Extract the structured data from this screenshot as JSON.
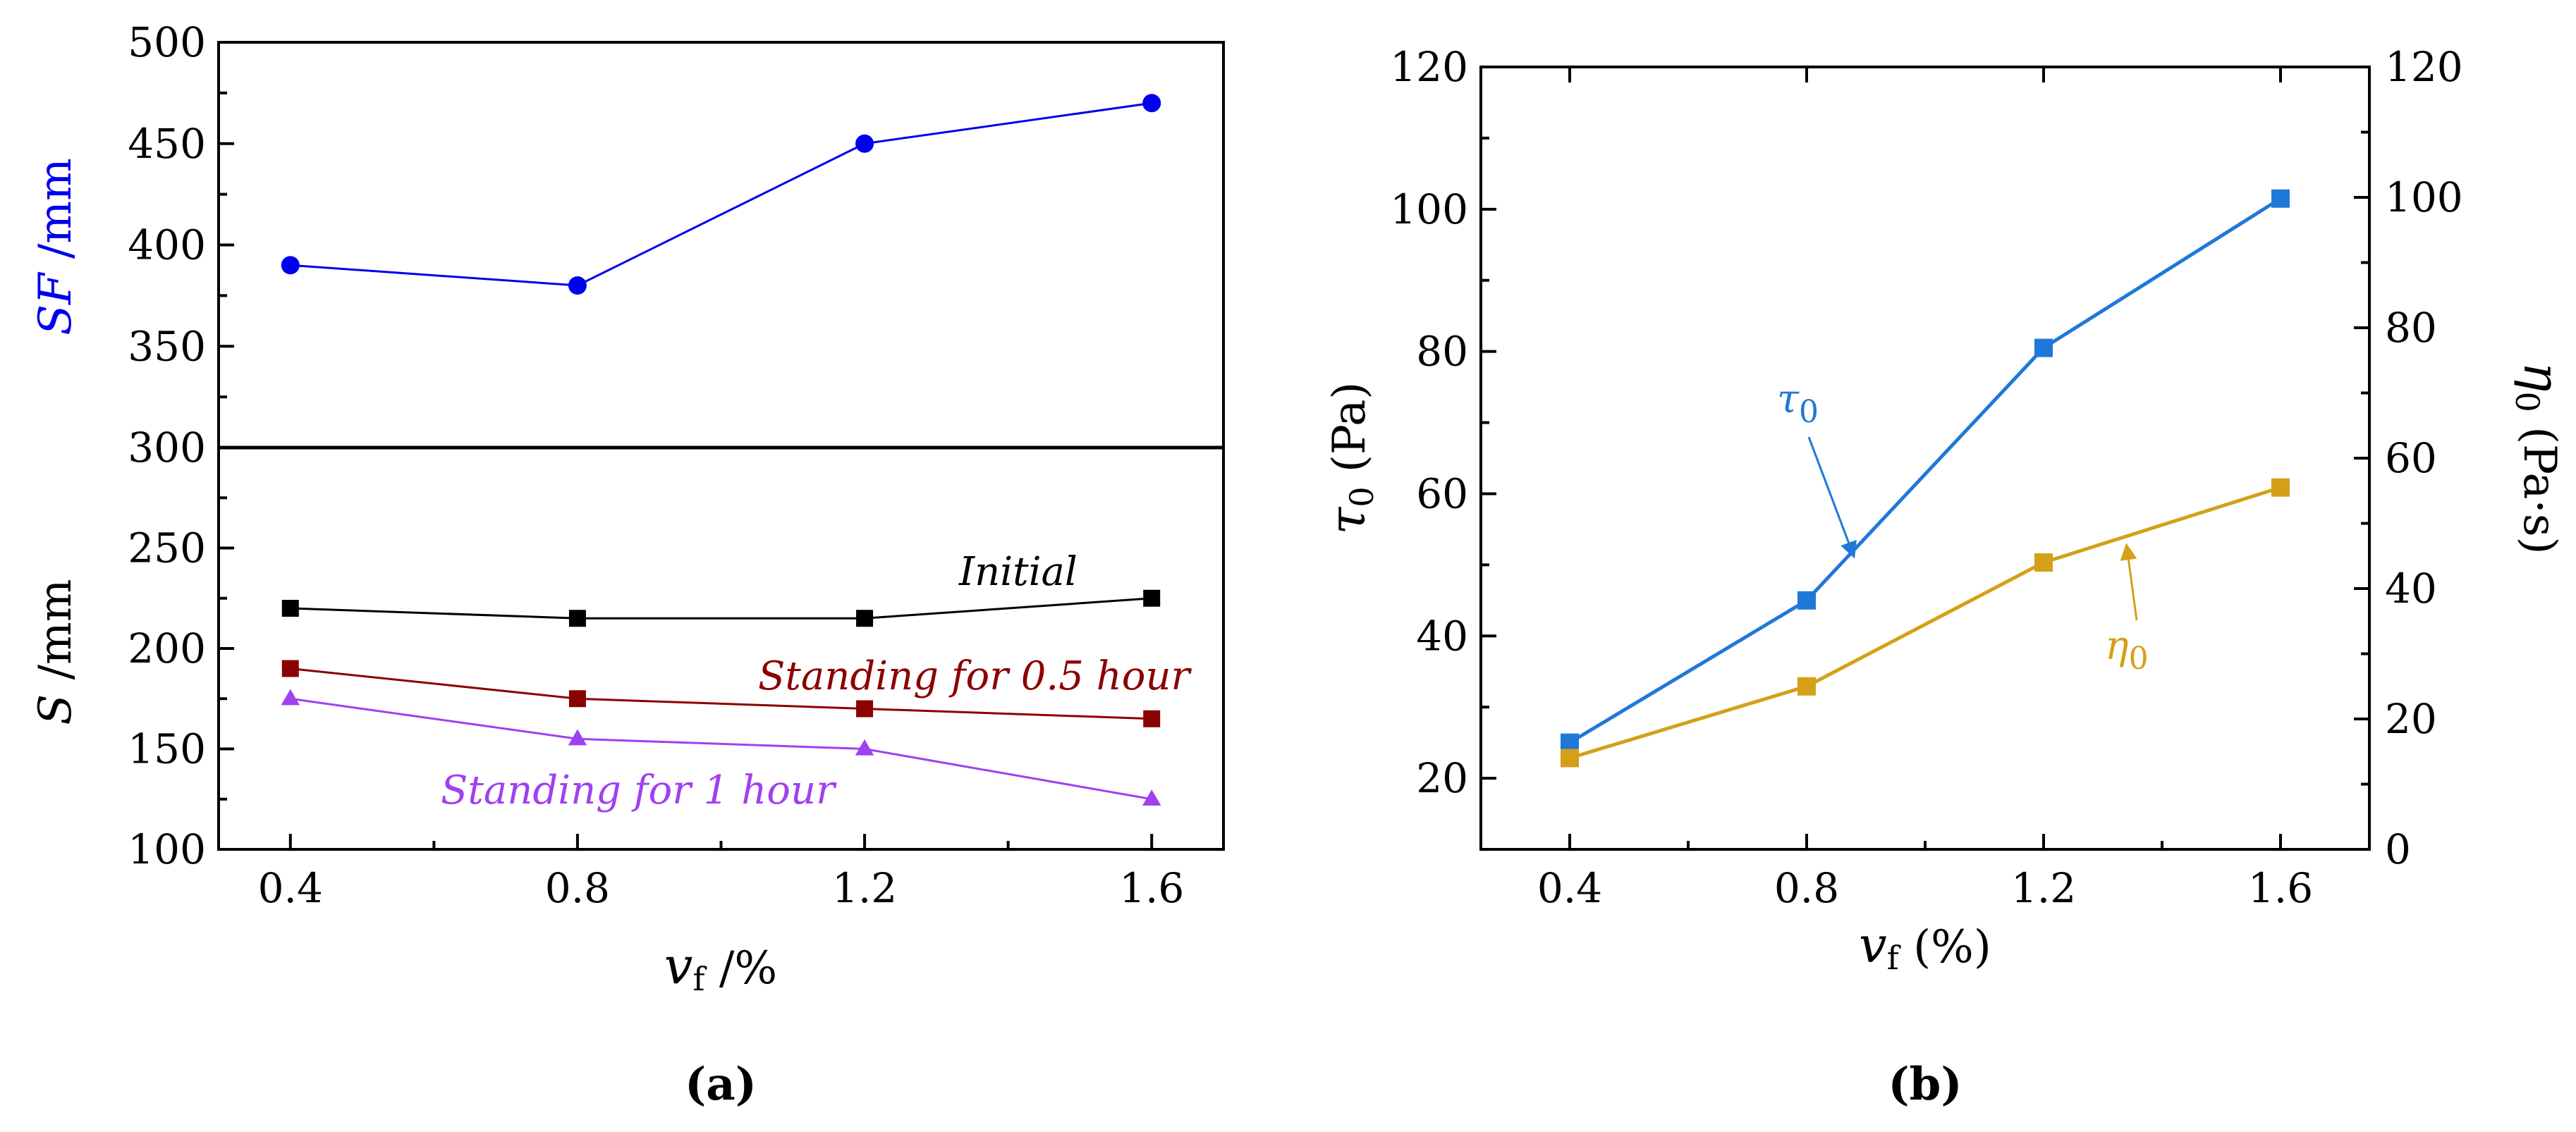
{
  "colors": {
    "sf": "#0000ee",
    "initial": "#000000",
    "half_hour": "#8b0000",
    "one_hour": "#a040f0",
    "tau": "#1f78d8",
    "eta": "#d4a017"
  },
  "chart_data": [
    {
      "panel": "a",
      "type": "line",
      "caption": "(a)",
      "xlabel_main": "v",
      "xlabel_sub": "f",
      "xlabel_rest": " /%",
      "x": [
        0.4,
        0.8,
        1.2,
        1.6
      ],
      "x_ticks": [
        "0.4",
        "0.8",
        "1.2",
        "1.6"
      ],
      "xlim": [
        0.3,
        1.7
      ],
      "top": {
        "ylabel_main": "SF",
        "ylabel_rest": " /mm",
        "ylim": [
          300,
          500
        ],
        "y_ticks": [
          "300",
          "350",
          "400",
          "450",
          "500"
        ],
        "series": [
          {
            "name": "SF",
            "marker": "circle",
            "values": [
              390,
              380,
              450,
              470
            ]
          }
        ]
      },
      "bottom": {
        "ylabel_main": "S",
        "ylabel_rest": " /mm",
        "ylim": [
          100,
          300
        ],
        "y_ticks": [
          "100",
          "150",
          "200",
          "250"
        ],
        "series": [
          {
            "name": "Initial",
            "marker": "square",
            "values": [
              220,
              215,
              215,
              225
            ]
          },
          {
            "name": "Standing for 0.5 hour",
            "marker": "square",
            "values": [
              190,
              175,
              170,
              165
            ]
          },
          {
            "name": "Standing for 1 hour",
            "marker": "triangle",
            "values": [
              175,
              155,
              150,
              125
            ]
          }
        ]
      }
    },
    {
      "panel": "b",
      "type": "line",
      "caption": "(b)",
      "xlabel_main": "v",
      "xlabel_sub": "f",
      "xlabel_rest": " (%)",
      "x": [
        0.4,
        0.8,
        1.2,
        1.6
      ],
      "x_ticks": [
        "0.4",
        "0.8",
        "1.2",
        "1.6"
      ],
      "xlim": [
        0.25,
        1.75
      ],
      "left_axis": {
        "ylabel_main": "τ",
        "ylabel_sub": "0",
        "ylabel_rest": " (Pa)",
        "ylim": [
          10,
          120
        ],
        "y_ticks": [
          "20",
          "40",
          "60",
          "80",
          "100",
          "120"
        ]
      },
      "right_axis": {
        "ylabel_main": "η",
        "ylabel_sub": "0",
        "ylabel_rest": " (Pa·s)",
        "ylim": [
          0,
          120
        ],
        "y_ticks": [
          "0",
          "20",
          "40",
          "60",
          "80",
          "100",
          "120"
        ]
      },
      "series": [
        {
          "name_main": "τ",
          "name_sub": "0",
          "axis": "left",
          "marker": "square",
          "values": [
            25,
            45,
            80.5,
            101.5
          ]
        },
        {
          "name_main": "η",
          "name_sub": "0",
          "axis": "right",
          "marker": "square",
          "values": [
            14,
            25,
            44,
            55.5
          ]
        }
      ]
    }
  ]
}
